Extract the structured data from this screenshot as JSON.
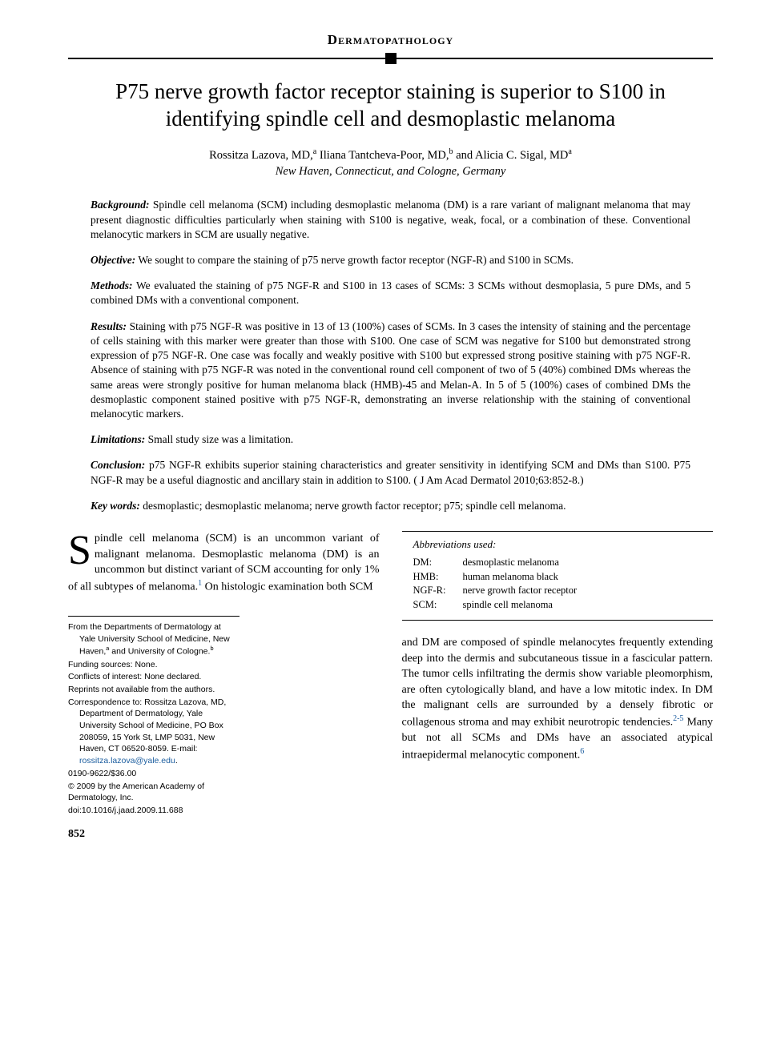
{
  "section": "Dermatopathology",
  "title": "P75 nerve growth factor receptor staining is superior to S100 in identifying spindle cell and desmoplastic melanoma",
  "authors_html": "Rossitza Lazova, MD,ᵃ Iliana Tantcheva-Poor, MD,ᵇ and Alicia C. Sigal, MDᵃ",
  "affiliation": "New Haven, Connecticut, and Cologne, Germany",
  "abstract": {
    "background": {
      "label": "Background:",
      "text": "Spindle cell melanoma (SCM) including desmoplastic melanoma (DM) is a rare variant of malignant melanoma that may present diagnostic difficulties particularly when staining with S100 is negative, weak, focal, or a combination of these. Conventional melanocytic markers in SCM are usually negative."
    },
    "objective": {
      "label": "Objective:",
      "text": "We sought to compare the staining of p75 nerve growth factor receptor (NGF-R) and S100 in SCMs."
    },
    "methods": {
      "label": "Methods:",
      "text": "We evaluated the staining of p75 NGF-R and S100 in 13 cases of SCMs: 3 SCMs without desmoplasia, 5 pure DMs, and 5 combined DMs with a conventional component."
    },
    "results": {
      "label": "Results:",
      "text": "Staining with p75 NGF-R was positive in 13 of 13 (100%) cases of SCMs. In 3 cases the intensity of staining and the percentage of cells staining with this marker were greater than those with S100. One case of SCM was negative for S100 but demonstrated strong expression of p75 NGF-R. One case was focally and weakly positive with S100 but expressed strong positive staining with p75 NGF-R. Absence of staining with p75 NGF-R was noted in the conventional round cell component of two of 5 (40%) combined DMs whereas the same areas were strongly positive for human melanoma black (HMB)-45 and Melan-A. In 5 of 5 (100%) cases of combined DMs the desmoplastic component stained positive with p75 NGF-R, demonstrating an inverse relationship with the staining of conventional melanocytic markers."
    },
    "limitations": {
      "label": "Limitations:",
      "text": "Small study size was a limitation."
    },
    "conclusion": {
      "label": "Conclusion:",
      "text": "p75 NGF-R exhibits superior staining characteristics and greater sensitivity in identifying SCM and DMs than S100. P75 NGF-R may be a useful diagnostic and ancillary stain in addition to S100. ( J Am Acad Dermatol 2010;63:852-8.)"
    },
    "keywords": {
      "label": "Key words:",
      "text": "desmoplastic; desmoplastic melanoma; nerve growth factor receptor; p75; spindle cell melanoma."
    }
  },
  "intro_col1": {
    "dropcap": "S",
    "text": "pindle cell melanoma (SCM) is an uncommon variant of malignant melanoma. Desmoplastic melanoma (DM) is an uncommon but distinct variant of SCM accounting for only 1% of all subtypes of melanoma.",
    "ref1": "1",
    "text2": " On histologic examination both SCM"
  },
  "abbrev": {
    "title": "Abbreviations used:",
    "rows": [
      {
        "key": "DM:",
        "val": "desmoplastic melanoma"
      },
      {
        "key": "HMB:",
        "val": "human melanoma black"
      },
      {
        "key": "NGF-R:",
        "val": "nerve growth factor receptor"
      },
      {
        "key": "SCM:",
        "val": "spindle cell melanoma"
      }
    ]
  },
  "col2_para": {
    "text1": "and DM are composed of spindle melanocytes frequently extending deep into the dermis and subcutaneous tissue in a fascicular pattern. The tumor cells infiltrating the dermis show variable pleomorphism, are often cytologically bland, and have a low mitotic index. In DM the malignant cells are surrounded by a densely fibrotic or collagenous stroma and may exhibit neurotropic tendencies.",
    "ref2": "2-5",
    "text2": " Many but not all SCMs and DMs have an associated atypical intraepidermal melanocytic component.",
    "ref3": "6"
  },
  "footnotes": {
    "from": "From the Departments of Dermatology at Yale University School of Medicine, New Haven,ᵃ and University of Cologne.ᵇ",
    "funding": "Funding sources: None.",
    "conflicts": "Conflicts of interest: None declared.",
    "reprints": "Reprints not available from the authors.",
    "correspondence": "Correspondence to: Rossitza Lazova, MD, Department of Dermatology, Yale University School of Medicine, PO Box 208059, 15 York St, LMP 5031, New Haven, CT 06520-8059. E-mail: ",
    "email": "rossitza.lazova@yale.edu",
    "isbn": "0190-9622/$36.00",
    "copyright": "© 2009 by the American Academy of Dermatology, Inc.",
    "doi": "doi:10.1016/j.jaad.2009.11.688"
  },
  "page": "852",
  "colors": {
    "link": "#1a5c9e",
    "text": "#000000",
    "bg": "#ffffff"
  }
}
